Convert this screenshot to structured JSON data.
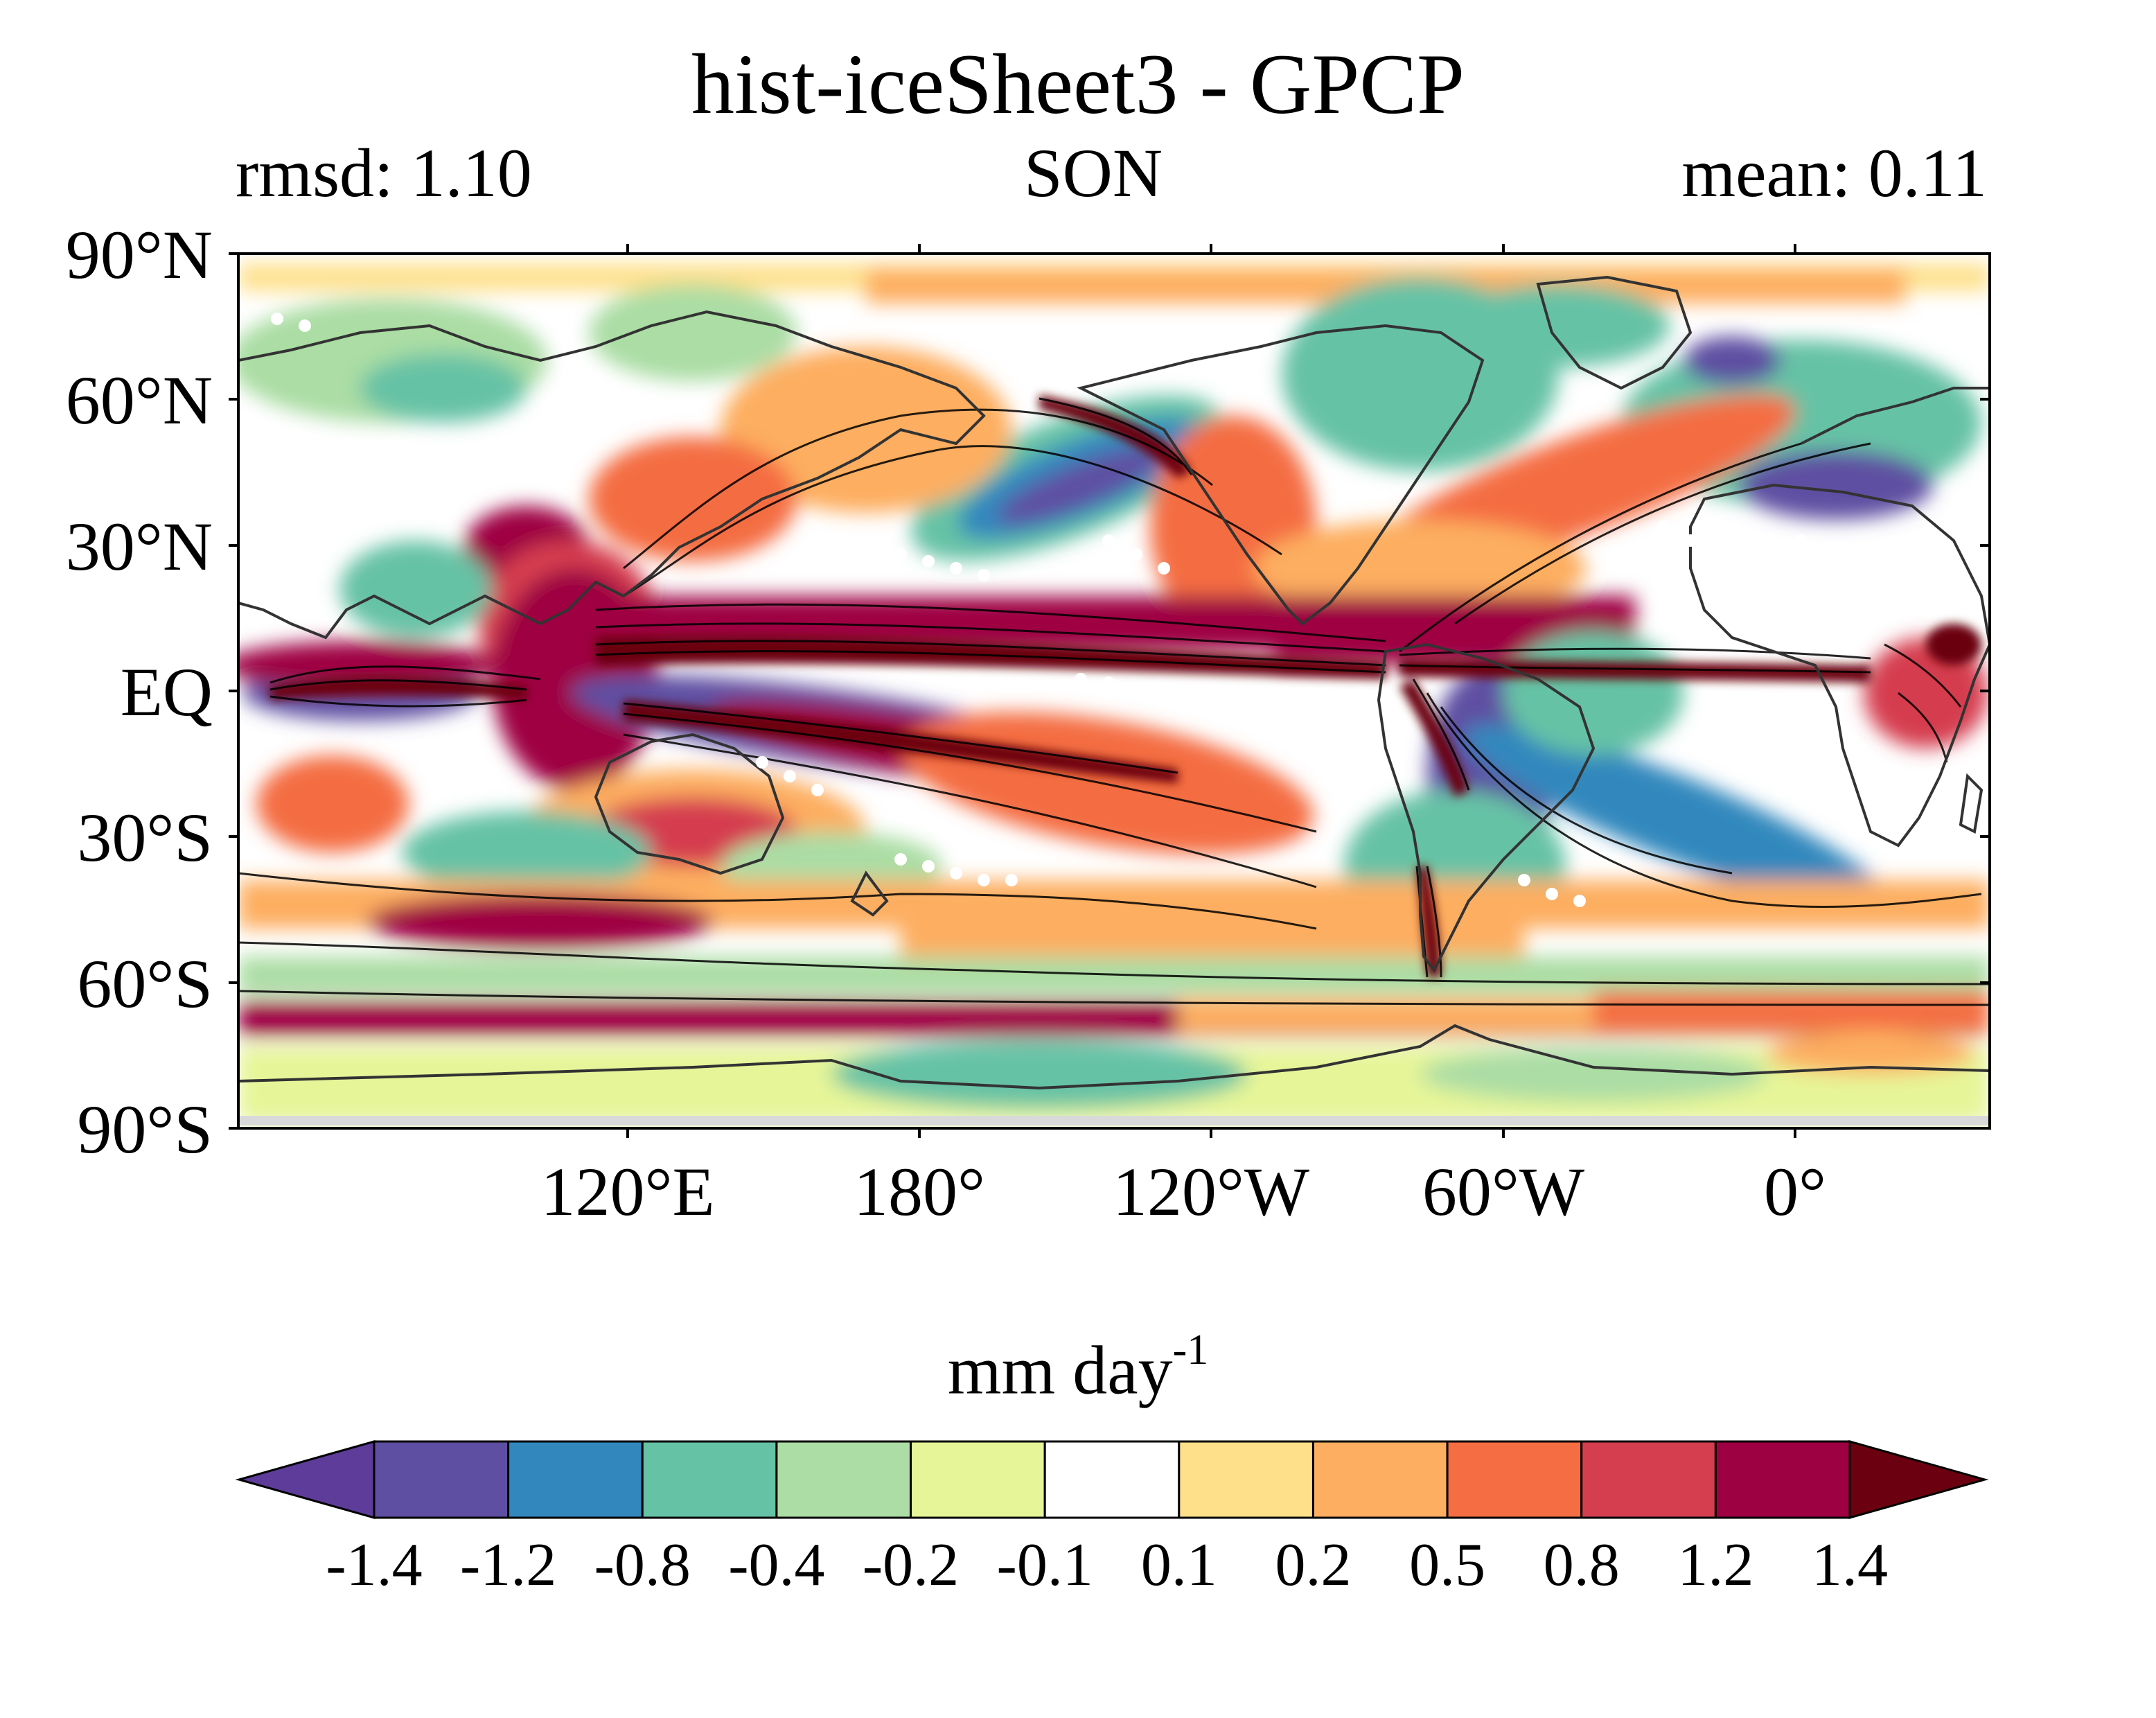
{
  "title": "hist-iceSheet3 - GPCP",
  "stats": {
    "rmsd": "rmsd: 1.10",
    "season": "SON",
    "mean": "mean: 0.11"
  },
  "axes": {
    "lat_labels": [
      "90°N",
      "60°N",
      "30°N",
      "EQ",
      "30°S",
      "60°S",
      "90°S"
    ],
    "lon_labels": [
      "120°E",
      "180°",
      "120°W",
      "60°W",
      "0°"
    ]
  },
  "colorbar": {
    "units_main": "mm day",
    "units_exp": "-1",
    "ticks": [
      "-1.4",
      "-1.2",
      "-0.8",
      "-0.4",
      "-0.2",
      "-0.1",
      "0.1",
      "0.2",
      "0.5",
      "0.8",
      "1.2",
      "1.4"
    ],
    "colors": [
      "#5e3c99",
      "#5e4fa2",
      "#3288bd",
      "#66c2a5",
      "#abdda4",
      "#e6f598",
      "#ffffff",
      "#fee08b",
      "#fdae61",
      "#f46d43",
      "#d53e4f",
      "#9e0142",
      "#6b0010"
    ],
    "extend": "both"
  },
  "map": {
    "projection": "equirectangular, central longitude 200°E",
    "field": "precipitation difference",
    "features": [
      "coastlines",
      "black contours of model precipitation",
      "white stippling"
    ]
  }
}
